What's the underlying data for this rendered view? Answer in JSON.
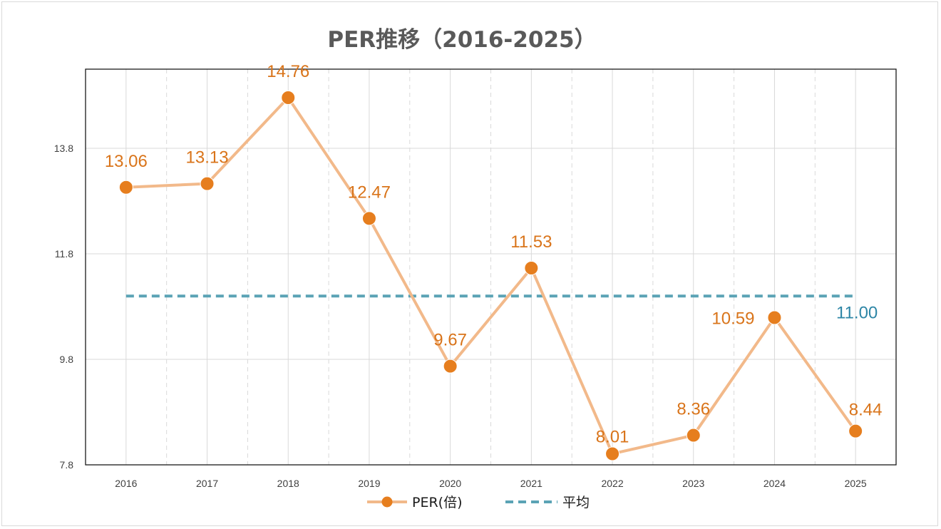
{
  "chart_data": {
    "type": "line",
    "title": "PER推移（2016-2025）",
    "categories": [
      "2016",
      "2017",
      "2018",
      "2019",
      "2020",
      "2021",
      "2022",
      "2023",
      "2024",
      "2025"
    ],
    "series": [
      {
        "name": "PER(倍)",
        "values": [
          13.06,
          13.13,
          14.76,
          12.47,
          9.67,
          11.53,
          8.01,
          8.36,
          10.59,
          8.44
        ],
        "labels": [
          "13.06",
          "13.13",
          "14.76",
          "12.47",
          "9.67",
          "11.53",
          "8.01",
          "8.36",
          "10.59",
          "8.44"
        ],
        "line_color": "#f2b98a",
        "marker_color": "#e67e1e",
        "label_color": "#d9741a"
      },
      {
        "name": "平均",
        "value": 11.0,
        "label": "11.00",
        "line_color": "#5ba3b5",
        "label_color": "#2e86a6",
        "style": "dashed"
      }
    ],
    "y_ticks": [
      "7.8",
      "9.8",
      "11.8",
      "13.8"
    ],
    "y_tick_values": [
      7.8,
      9.8,
      11.8,
      13.8
    ],
    "ylim": [
      7.8,
      15.3
    ],
    "xlabel": "",
    "ylabel": "",
    "grid": true,
    "legend_position": "bottom"
  }
}
